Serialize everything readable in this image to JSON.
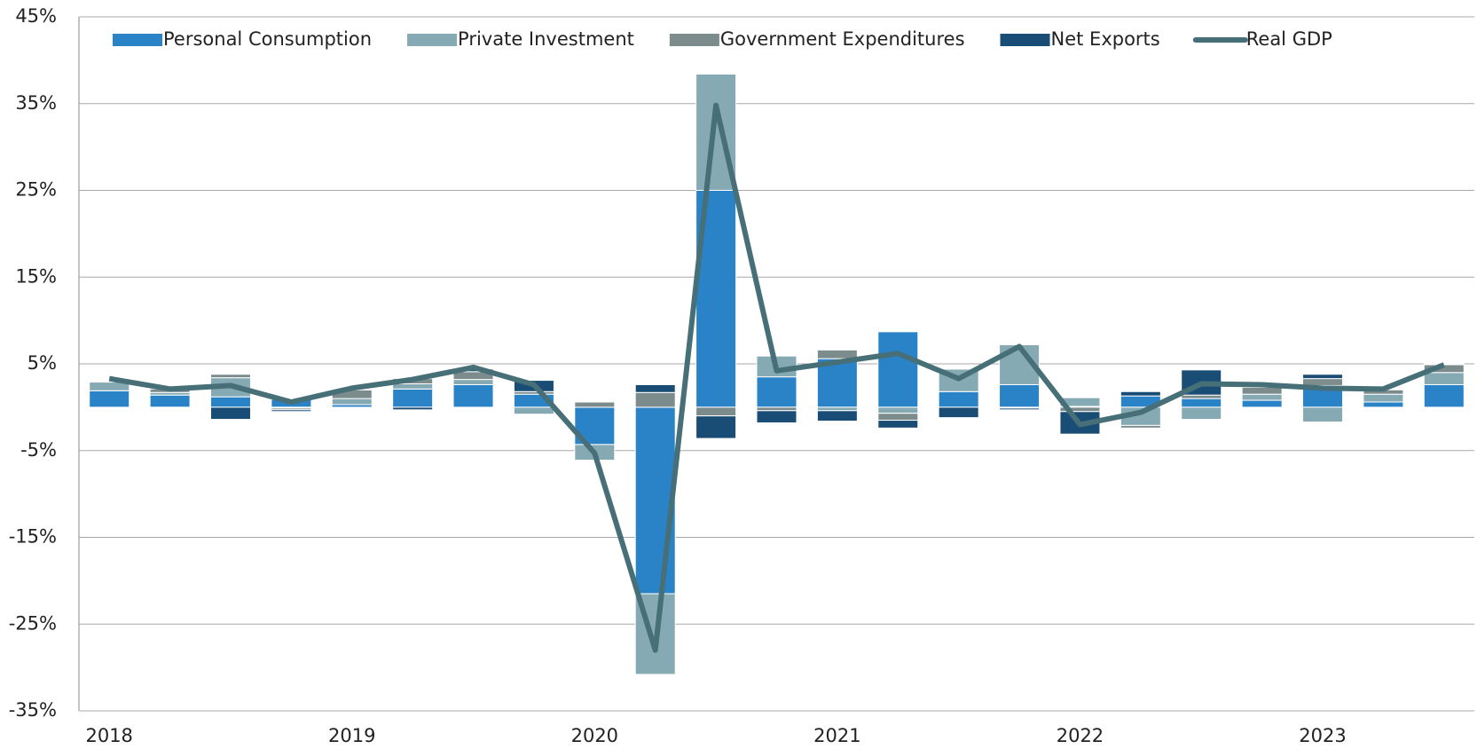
{
  "chart_data": {
    "type": "bar",
    "stacked": true,
    "categories": [
      "2018",
      null,
      null,
      null,
      "2019",
      null,
      null,
      null,
      "2020",
      null,
      null,
      null,
      "2021",
      null,
      null,
      null,
      "2022",
      null,
      null,
      null,
      "2023",
      null,
      null
    ],
    "series": [
      {
        "name": "Personal Consumption",
        "color": "#2a83c6",
        "values": [
          1.9,
          1.4,
          1.2,
          0.9,
          0.3,
          2.1,
          2.6,
          1.5,
          -4.3,
          -21.5,
          25.0,
          3.5,
          5.6,
          8.7,
          1.8,
          2.6,
          0.1,
          1.3,
          1.0,
          0.8,
          2.5,
          0.6,
          2.6
        ]
      },
      {
        "name": "Private Investment",
        "color": "#86aab3",
        "values": [
          1.0,
          0.3,
          2.2,
          -0.1,
          0.7,
          0.6,
          0.6,
          -0.8,
          -1.8,
          -9.3,
          13.4,
          2.4,
          -0.4,
          -0.7,
          2.6,
          4.6,
          1.0,
          -2.1,
          -1.4,
          0.7,
          -1.7,
          0.9,
          1.4
        ]
      },
      {
        "name": "Government Expenditures",
        "color": "#7c8b8c",
        "values": [
          0.1,
          0.4,
          0.4,
          -0.2,
          1.0,
          0.6,
          0.9,
          0.3,
          0.6,
          1.7,
          -1.0,
          -0.4,
          1.0,
          -0.8,
          0.1,
          -0.1,
          -0.5,
          -0.3,
          0.4,
          0.8,
          0.8,
          0.5,
          0.9
        ]
      },
      {
        "name": "Net Exports",
        "color": "#1a4d75",
        "values": [
          0.0,
          -0.1,
          -1.4,
          -0.2,
          0.1,
          -0.3,
          0.3,
          1.3,
          0.0,
          0.9,
          -2.6,
          -1.4,
          -1.2,
          -0.9,
          -1.2,
          -0.2,
          -2.6,
          0.5,
          2.9,
          0.3,
          0.5,
          0.0,
          0.1
        ]
      },
      {
        "name": "Real GDP",
        "color": "#476f78",
        "type": "line",
        "values": [
          3.3,
          2.1,
          2.5,
          0.6,
          2.2,
          3.2,
          4.6,
          2.6,
          -5.3,
          -28.0,
          34.8,
          4.2,
          5.2,
          6.2,
          3.3,
          7.0,
          -2.0,
          -0.6,
          2.7,
          2.6,
          2.2,
          2.1,
          4.9
        ]
      }
    ],
    "ylim": [
      -35,
      45
    ],
    "yticks": [
      {
        "value": -35,
        "label": "-35%"
      },
      {
        "value": -25,
        "label": "-25%"
      },
      {
        "value": -15,
        "label": "-15%"
      },
      {
        "value": -5,
        "label": "-5%"
      },
      {
        "value": 5,
        "label": "5%"
      },
      {
        "value": 15,
        "label": "15%"
      },
      {
        "value": 25,
        "label": "25%"
      },
      {
        "value": 35,
        "label": "35%"
      },
      {
        "value": 45,
        "label": "45%"
      }
    ],
    "grid": true,
    "legend": "top"
  }
}
